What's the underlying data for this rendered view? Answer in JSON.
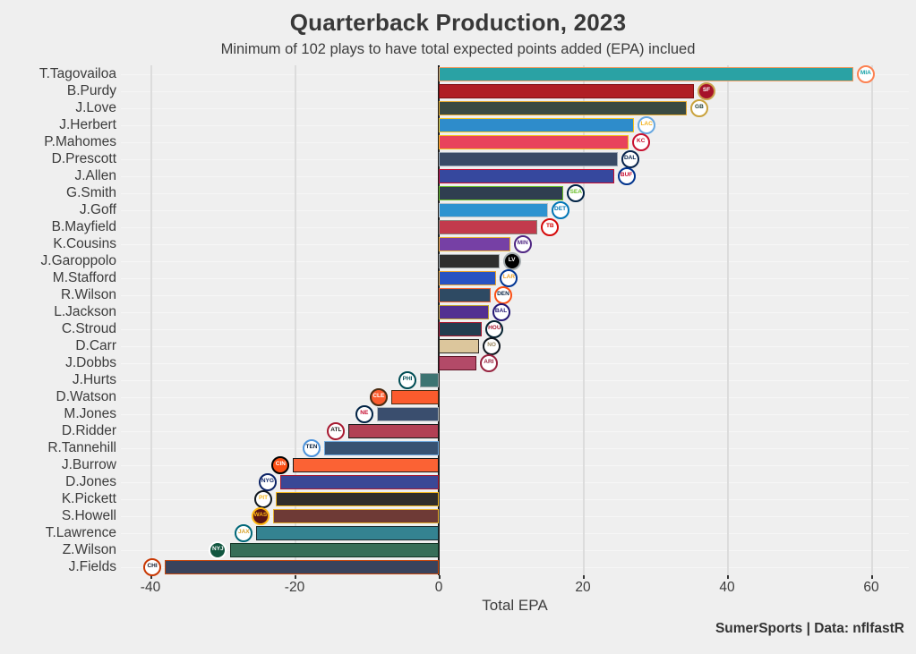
{
  "header": {
    "title": "Quarterback Production, 2023",
    "subtitle": "Minimum of 102 plays to have total expected points added (EPA) inclued"
  },
  "footer": {
    "caption": "SumerSports | Data: nflfastR"
  },
  "chart_data": {
    "type": "bar",
    "orientation": "horizontal",
    "title": "Quarterback Production, 2023",
    "subtitle": "Minimum of 102 plays to have total expected points added (EPA) inclued",
    "xlabel": "Total EPA",
    "caption": "SumerSports | Data: nflfastR",
    "xlim": [
      -44,
      66
    ],
    "x_ticks": [
      -40,
      -20,
      0,
      20,
      40,
      60
    ],
    "x_tick_labels": [
      "-40",
      "-20",
      "0",
      "20",
      "40",
      "60"
    ],
    "grid": "on",
    "background": "#efefef",
    "players": [
      {
        "name": "T.Tagovailoa",
        "team": "MIA",
        "epa": 57.5,
        "fill": "#2aa2a4",
        "border": "#f09a5e",
        "logo_bg": "#ffffff",
        "logo_ring": "#fc8151",
        "logo_fg": "#17a2a8"
      },
      {
        "name": "B.Purdy",
        "team": "SF",
        "epa": 35.4,
        "fill": "#b01f24",
        "border": "#7e1013",
        "logo_bg": "#a6122a",
        "logo_ring": "#c9a04c",
        "logo_fg": "#ffffff"
      },
      {
        "name": "J.Love",
        "team": "GB",
        "epa": 34.4,
        "fill": "#3a4a42",
        "border": "#e3a92f",
        "logo_bg": "#ffffff",
        "logo_ring": "#c9a23c",
        "logo_fg": "#1e3b2f"
      },
      {
        "name": "J.Herbert",
        "team": "LAC",
        "epa": 27.1,
        "fill": "#2e8ccb",
        "border": "#f2c11e",
        "logo_bg": "#ffffff",
        "logo_ring": "#68a8e0",
        "logo_fg": "#f2b21d"
      },
      {
        "name": "P.Mahomes",
        "team": "KC",
        "epa": 26.3,
        "fill": "#e8435c",
        "border": "#f2c11e",
        "logo_bg": "#ffffff",
        "logo_ring": "#c8102e",
        "logo_fg": "#c8102e"
      },
      {
        "name": "D.Prescott",
        "team": "DAL",
        "epa": 24.8,
        "fill": "#3a4b66",
        "border": "#97a4b2",
        "logo_bg": "#ffffff",
        "logo_ring": "#08244c",
        "logo_fg": "#08244c"
      },
      {
        "name": "J.Allen",
        "team": "BUF",
        "epa": 24.3,
        "fill": "#36489e",
        "border": "#c60c30",
        "logo_bg": "#ffffff",
        "logo_ring": "#00338d",
        "logo_fg": "#c60c30"
      },
      {
        "name": "G.Smith",
        "team": "SEA",
        "epa": 17.3,
        "fill": "#2f3e50",
        "border": "#69be28",
        "logo_bg": "#ffffff",
        "logo_ring": "#002244",
        "logo_fg": "#69be28"
      },
      {
        "name": "J.Goff",
        "team": "DET",
        "epa": 15.1,
        "fill": "#2e93d0",
        "border": "#bcc4ca",
        "logo_bg": "#ffffff",
        "logo_ring": "#0076b6",
        "logo_fg": "#0076b6"
      },
      {
        "name": "B.Mayfield",
        "team": "TB",
        "epa": 13.7,
        "fill": "#c23a4c",
        "border": "#8a8078",
        "logo_bg": "#ffffff",
        "logo_ring": "#d50a0a",
        "logo_fg": "#d50a0a"
      },
      {
        "name": "K.Cousins",
        "team": "MIN",
        "epa": 9.9,
        "fill": "#7640a5",
        "border": "#e8b02e",
        "logo_bg": "#ffffff",
        "logo_ring": "#4f2683",
        "logo_fg": "#4f2683"
      },
      {
        "name": "J.Garoppolo",
        "team": "LV",
        "epa": 8.4,
        "fill": "#2e2e2e",
        "border": "#a5acaf",
        "logo_bg": "#000000",
        "logo_ring": "#a5acaf",
        "logo_fg": "#ffffff"
      },
      {
        "name": "M.Stafford",
        "team": "LAR",
        "epa": 8.0,
        "fill": "#2853c2",
        "border": "#e8a32e",
        "logo_bg": "#ffffff",
        "logo_ring": "#003594",
        "logo_fg": "#e8a32e"
      },
      {
        "name": "R.Wilson",
        "team": "DEN",
        "epa": 7.2,
        "fill": "#2e4a63",
        "border": "#f2632e",
        "logo_bg": "#ffffff",
        "logo_ring": "#fb4f14",
        "logo_fg": "#0a2343"
      },
      {
        "name": "L.Jackson",
        "team": "BAL",
        "epa": 6.9,
        "fill": "#533091",
        "border": "#bfa22e",
        "logo_bg": "#ffffff",
        "logo_ring": "#241773",
        "logo_fg": "#241773"
      },
      {
        "name": "C.Stroud",
        "team": "HOU",
        "epa": 6.0,
        "fill": "#233d50",
        "border": "#a71930",
        "logo_bg": "#ffffff",
        "logo_ring": "#03202f",
        "logo_fg": "#a71930"
      },
      {
        "name": "D.Carr",
        "team": "NO",
        "epa": 5.6,
        "fill": "#dcc69c",
        "border": "#2e2a25",
        "logo_bg": "#ffffff",
        "logo_ring": "#101820",
        "logo_fg": "#9a8861"
      },
      {
        "name": "J.Dobbs",
        "team": "ARI",
        "epa": 5.2,
        "fill": "#b34a68",
        "border": "#5e1224",
        "logo_bg": "#ffffff",
        "logo_ring": "#97233f",
        "logo_fg": "#97233f"
      },
      {
        "name": "J.Hurts",
        "team": "PHI",
        "epa": -2.6,
        "fill": "#3d7472",
        "border": "#9aa5a8",
        "logo_bg": "#ffffff",
        "logo_ring": "#004c54",
        "logo_fg": "#004c54"
      },
      {
        "name": "D.Watson",
        "team": "CLE",
        "epa": -6.6,
        "fill": "#fb5b2d",
        "border": "#4a2b12",
        "logo_bg": "#fb5b2d",
        "logo_ring": "#4a2b12",
        "logo_fg": "#ffffff"
      },
      {
        "name": "M.Jones",
        "team": "NE",
        "epa": -8.6,
        "fill": "#3a4e6e",
        "border": "#b0b7bc",
        "logo_bg": "#ffffff",
        "logo_ring": "#002244",
        "logo_fg": "#c60c30"
      },
      {
        "name": "D.Ridder",
        "team": "ATL",
        "epa": -12.5,
        "fill": "#b24054",
        "border": "#1a1a1a",
        "logo_bg": "#ffffff",
        "logo_ring": "#a71930",
        "logo_fg": "#1a1a1a"
      },
      {
        "name": "R.Tannehill",
        "team": "TEN",
        "epa": -15.9,
        "fill": "#375272",
        "border": "#6fa8dc",
        "logo_bg": "#ffffff",
        "logo_ring": "#4b92db",
        "logo_fg": "#0c2340"
      },
      {
        "name": "J.Burrow",
        "team": "CIN",
        "epa": -20.2,
        "fill": "#fb6234",
        "border": "#1a1a1a",
        "logo_bg": "#fb4f14",
        "logo_ring": "#000000",
        "logo_fg": "#ffffff"
      },
      {
        "name": "D.Jones",
        "team": "NYG",
        "epa": -22.0,
        "fill": "#3a4896",
        "border": "#a71930",
        "logo_bg": "#ffffff",
        "logo_ring": "#0b2265",
        "logo_fg": "#0b2265"
      },
      {
        "name": "K.Pickett",
        "team": "PIT",
        "epa": -22.6,
        "fill": "#302d2a",
        "border": "#f2b61e",
        "logo_bg": "#ffffff",
        "logo_ring": "#101820",
        "logo_fg": "#f2b61e"
      },
      {
        "name": "S.Howell",
        "team": "WAS",
        "epa": -23.0,
        "fill": "#6e3a36",
        "border": "#e8b02e",
        "logo_bg": "#5a1414",
        "logo_ring": "#ffb612",
        "logo_fg": "#ffb612"
      },
      {
        "name": "T.Lawrence",
        "team": "JAX",
        "epa": -25.3,
        "fill": "#348391",
        "border": "#1a2b2e",
        "logo_bg": "#ffffff",
        "logo_ring": "#006778",
        "logo_fg": "#d7a22a"
      },
      {
        "name": "Z.Wilson",
        "team": "NYJ",
        "epa": -28.9,
        "fill": "#376e58",
        "border": "#123324",
        "logo_bg": "#125740",
        "logo_ring": "#ffffff",
        "logo_fg": "#ffffff"
      },
      {
        "name": "J.Fields",
        "team": "CHI",
        "epa": -38.0,
        "fill": "#39435c",
        "border": "#c8490d",
        "logo_bg": "#ffffff",
        "logo_ring": "#c83803",
        "logo_fg": "#0b162a"
      }
    ]
  }
}
